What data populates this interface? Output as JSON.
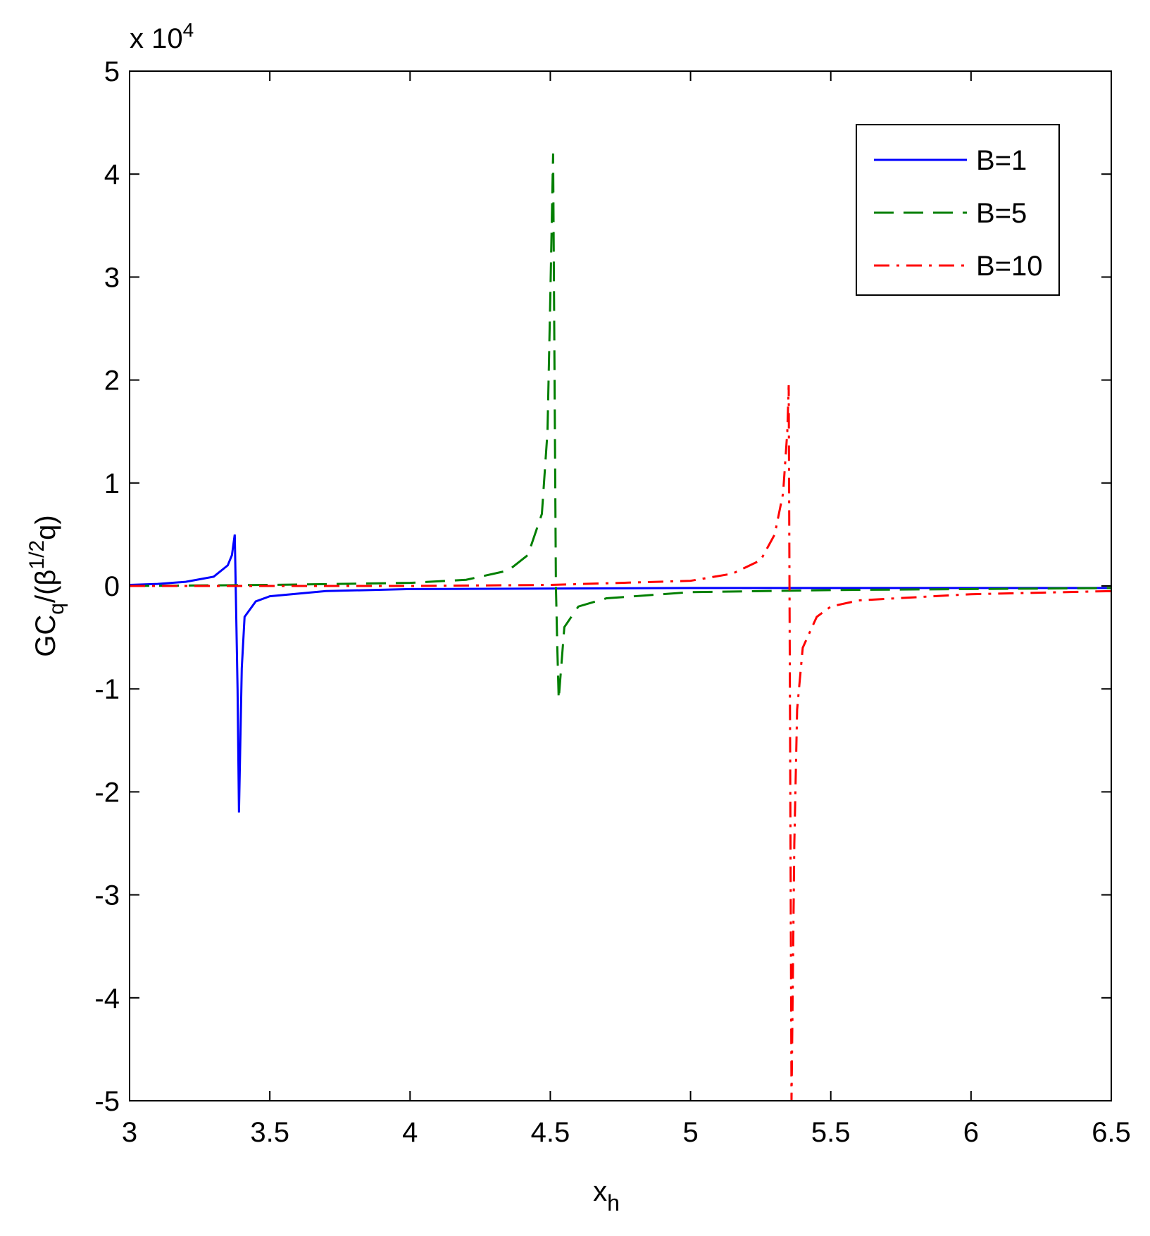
{
  "chart_data": {
    "type": "line",
    "y_multiplier": {
      "base": "x 10",
      "exponent": "4"
    },
    "x_label": {
      "base": "x",
      "subscript": "h"
    },
    "y_label": {
      "part1": "GC",
      "sub1": "q",
      "part2": "/(β",
      "sup1": "1/2",
      "part3": "q)"
    },
    "xlim": [
      3,
      6.5
    ],
    "xticks": [
      3,
      3.5,
      4,
      4.5,
      5,
      5.5,
      6,
      6.5
    ],
    "ylim": [
      -5,
      5
    ],
    "yticks": [
      -5,
      -4,
      -3,
      -2,
      -1,
      0,
      1,
      2,
      3,
      4,
      5
    ],
    "legend": "upper-right",
    "series": [
      {
        "name": "B=1",
        "color": "#0000ff",
        "style": "solid",
        "x": [
          3,
          3.1,
          3.2,
          3.3,
          3.35,
          3.365,
          3.375,
          3.385,
          3.39,
          3.4,
          3.41,
          3.45,
          3.5,
          3.7,
          4,
          5,
          6,
          6.5
        ],
        "values": [
          0.01,
          0.02,
          0.04,
          0.09,
          0.2,
          0.3,
          0.5,
          -1.0,
          -2.2,
          -0.8,
          -0.3,
          -0.15,
          -0.1,
          -0.05,
          -0.03,
          -0.02,
          -0.02,
          -0.02
        ]
      },
      {
        "name": "B=5",
        "color": "#007f00",
        "style": "dashed",
        "x": [
          3,
          3.5,
          4,
          4.2,
          4.35,
          4.42,
          4.47,
          4.49,
          4.5,
          4.51,
          4.52,
          4.525,
          4.53,
          4.55,
          4.6,
          4.7,
          5,
          5.5,
          6,
          6.5
        ],
        "values": [
          0,
          0.01,
          0.03,
          0.06,
          0.15,
          0.3,
          0.7,
          1.5,
          2.8,
          4.2,
          0,
          -0.6,
          -1.1,
          -0.4,
          -0.2,
          -0.12,
          -0.06,
          -0.04,
          -0.03,
          -0.02
        ]
      },
      {
        "name": "B=10",
        "color": "#ff0000",
        "style": "dashdot",
        "x": [
          3,
          4,
          4.5,
          5,
          5.15,
          5.25,
          5.3,
          5.33,
          5.345,
          5.35,
          5.36,
          5.37,
          5.38,
          5.4,
          5.45,
          5.5,
          5.6,
          6,
          6.5
        ],
        "values": [
          0,
          0,
          0.01,
          0.05,
          0.12,
          0.25,
          0.5,
          0.9,
          1.5,
          1.95,
          -5,
          -2.5,
          -1.2,
          -0.6,
          -0.3,
          -0.2,
          -0.14,
          -0.08,
          -0.05
        ]
      }
    ]
  }
}
